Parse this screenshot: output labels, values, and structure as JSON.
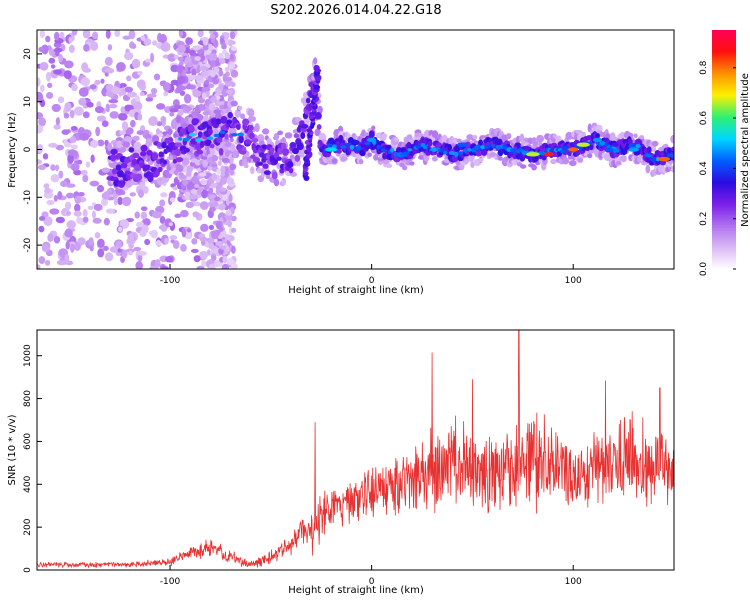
{
  "title": "S202.2026.014.04.22.G18",
  "colors": {
    "snr_line": "#e83232",
    "colormap": [
      "#ffffff",
      "#d9b8f5",
      "#b070f0",
      "#7a1ee8",
      "#2a0ce0",
      "#0060ff",
      "#00d8ff",
      "#30f070",
      "#fff000",
      "#ff9000",
      "#ff1010",
      "#ff0058"
    ]
  },
  "chart_data": [
    {
      "type": "heatmap",
      "name": "spectrogram",
      "xlabel": "Height of straight line (km)",
      "ylabel": "Frequency (Hz)",
      "xlim": [
        -166,
        150
      ],
      "ylim": [
        -25,
        25
      ],
      "xticks": [
        -100,
        0,
        100
      ],
      "yticks": [
        -20,
        -10,
        0,
        10,
        20
      ],
      "colorbar": {
        "label": "Normalized spectral amplitude",
        "range": [
          0.0,
          0.95
        ],
        "ticks": [
          "0.0",
          "0.2",
          "0.4",
          "0.6",
          "0.8"
        ]
      },
      "ridge_track_hz": [
        [
          -125,
          -4
        ],
        [
          -110,
          -3
        ],
        [
          -100,
          0
        ],
        [
          -90,
          3
        ],
        [
          -80,
          2
        ],
        [
          -70,
          4
        ],
        [
          -60,
          2
        ],
        [
          -50,
          -3
        ],
        [
          -40,
          -1
        ],
        [
          -33,
          5
        ],
        [
          -28,
          14
        ],
        [
          -25,
          0
        ],
        [
          -15,
          1
        ],
        [
          -5,
          0
        ],
        [
          0,
          2
        ],
        [
          5,
          0
        ],
        [
          15,
          -1
        ],
        [
          25,
          1
        ],
        [
          40,
          -1
        ],
        [
          60,
          1
        ],
        [
          80,
          -1
        ],
        [
          90,
          0
        ],
        [
          100,
          0
        ],
        [
          110,
          2
        ],
        [
          120,
          0
        ],
        [
          130,
          1
        ],
        [
          140,
          -2
        ],
        [
          150,
          -1
        ]
      ],
      "strong_features": [
        [
          -20,
          0,
          0.55
        ],
        [
          0,
          2,
          0.5
        ],
        [
          45,
          1,
          0.45
        ],
        [
          80,
          -1,
          0.7
        ],
        [
          88,
          -1,
          0.9
        ],
        [
          100,
          0,
          0.85
        ],
        [
          105,
          1,
          0.7
        ],
        [
          112,
          2,
          0.5
        ],
        [
          118,
          0,
          0.45
        ],
        [
          130,
          0,
          0.5
        ],
        [
          145,
          -2,
          0.85
        ]
      ]
    },
    {
      "type": "line",
      "name": "snr",
      "xlabel": "Height of straight line (km)",
      "ylabel": "SNR (10 * v/v)",
      "xlim": [
        -166,
        150
      ],
      "ylim": [
        0,
        1120
      ],
      "xticks": [
        -100,
        0,
        100
      ],
      "yticks": [
        0,
        200,
        400,
        600,
        800,
        1000
      ],
      "series": [
        {
          "name": "SNR",
          "envelope_x": [
            -166,
            -120,
            -100,
            -90,
            -80,
            -70,
            -60,
            -50,
            -40,
            -35,
            -30,
            -25,
            -20,
            -10,
            0,
            10,
            20,
            30,
            40,
            50,
            60,
            70,
            80,
            90,
            100,
            110,
            120,
            130,
            140,
            150
          ],
          "envelope_mean": [
            25,
            25,
            40,
            80,
            105,
            60,
            25,
            60,
            120,
            180,
            160,
            250,
            300,
            330,
            350,
            380,
            420,
            480,
            500,
            480,
            460,
            480,
            520,
            500,
            420,
            460,
            500,
            520,
            500,
            460
          ],
          "envelope_spread": [
            15,
            15,
            25,
            40,
            50,
            40,
            20,
            40,
            60,
            100,
            120,
            130,
            130,
            130,
            140,
            170,
            200,
            250,
            270,
            260,
            240,
            260,
            300,
            270,
            180,
            200,
            220,
            240,
            230,
            200
          ],
          "peaks": [
            [
              -28,
              690
            ],
            [
              30,
              1015
            ],
            [
              50,
              890
            ],
            [
              73,
              1120
            ],
            [
              116,
              885
            ],
            [
              143,
              850
            ]
          ]
        }
      ]
    }
  ]
}
